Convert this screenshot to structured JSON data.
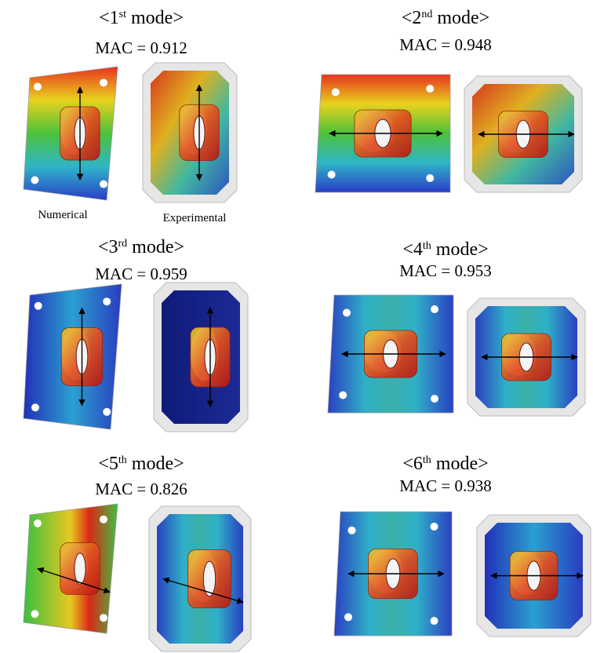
{
  "modes": [
    {
      "title": {
        "prefix": "<1",
        "sup": "st",
        "suffix": " mode>"
      },
      "mac": "MAC = 0.912"
    },
    {
      "title": {
        "prefix": "<2",
        "sup": "nd",
        "suffix": " mode>"
      },
      "mac": "MAC = 0.948"
    },
    {
      "title": {
        "prefix": "<3",
        "sup": "rd",
        "suffix": " mode>"
      },
      "mac": "MAC = 0.959"
    },
    {
      "title": {
        "prefix": "<4",
        "sup": "th",
        "suffix": " mode>"
      },
      "mac": "MAC = 0.953"
    },
    {
      "title": {
        "prefix": "<5",
        "sup": "th",
        "suffix": " mode>"
      },
      "mac": "MAC = 0.826"
    },
    {
      "title": {
        "prefix": "<6",
        "sup": "th",
        "suffix": " mode>"
      },
      "mac": "MAC = 0.938"
    }
  ],
  "labels": {
    "numerical": "Numerical",
    "experimental": "Experimental"
  }
}
